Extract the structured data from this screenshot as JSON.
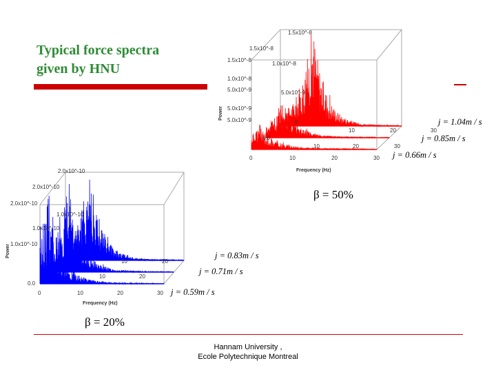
{
  "slide": {
    "title_line1": "Typical force spectra",
    "title_line2": "given by HNU",
    "footer_line1": "Hannam University ,",
    "footer_line2": "Ecole Polytechnique Montreal",
    "accent_color": "#cc0000",
    "title_color": "#2e8b35"
  },
  "chart_data": [
    {
      "type": "line",
      "view": "3d-waterfall",
      "color": "#ff0000",
      "annotation": "β = 50%",
      "xlabel": "Frequency (Hz)",
      "ylabel": "Power",
      "x_ticks": [
        "0",
        "10",
        "20",
        "30"
      ],
      "power_ticks_back": [
        "1.5x10^-8",
        "1.0x10^-8",
        "5.0x10^-9",
        "0.0"
      ],
      "power_ticks_front": [
        "1.5x10^-8",
        "1.0x10^-8",
        "5.0x10^-9",
        "0.0"
      ],
      "power_ticks_top": "1.5x10^-8",
      "series": [
        {
          "name": "j = 1.04 m/s",
          "label_text": "j = 1.04m / s",
          "peak_frequency_hz": 8,
          "peak_power": 1.45e-08
        },
        {
          "name": "j = 0.85 m/s",
          "label_text": "j = 0.85m / s",
          "peak_frequency_hz": 4,
          "peak_power": 5e-09
        },
        {
          "name": "j = 0.66 m/s",
          "label_text": "j = 0.66m / s",
          "peak_frequency_hz": 2,
          "peak_power": 3e-09
        }
      ]
    },
    {
      "type": "line",
      "view": "3d-waterfall",
      "color": "#0000ff",
      "annotation": "β = 20%",
      "xlabel": "Frequency (Hz)",
      "ylabel": "Power",
      "x_ticks": [
        "0",
        "10",
        "20",
        "30"
      ],
      "power_ticks_back": [
        "2.0x10^-10",
        "1.0x10^-10"
      ],
      "power_ticks_front": [
        "2.0x10^-10",
        "1.0x10^-10",
        "0.0"
      ],
      "power_ticks_top": "2.0x10^-10",
      "series": [
        {
          "name": "j = 0.83 m/s",
          "label_text": "j = 0.83m / s",
          "peak_frequency_hz": 6,
          "peak_power": 2e-10
        },
        {
          "name": "j = 0.71 m/s",
          "label_text": "j = 0.71m / s",
          "peak_frequency_hz": 4,
          "peak_power": 1.9e-10
        },
        {
          "name": "j = 0.59 m/s",
          "label_text": "j = 0.59m / s",
          "peak_frequency_hz": 2,
          "peak_power": 1.8e-10
        }
      ]
    }
  ]
}
